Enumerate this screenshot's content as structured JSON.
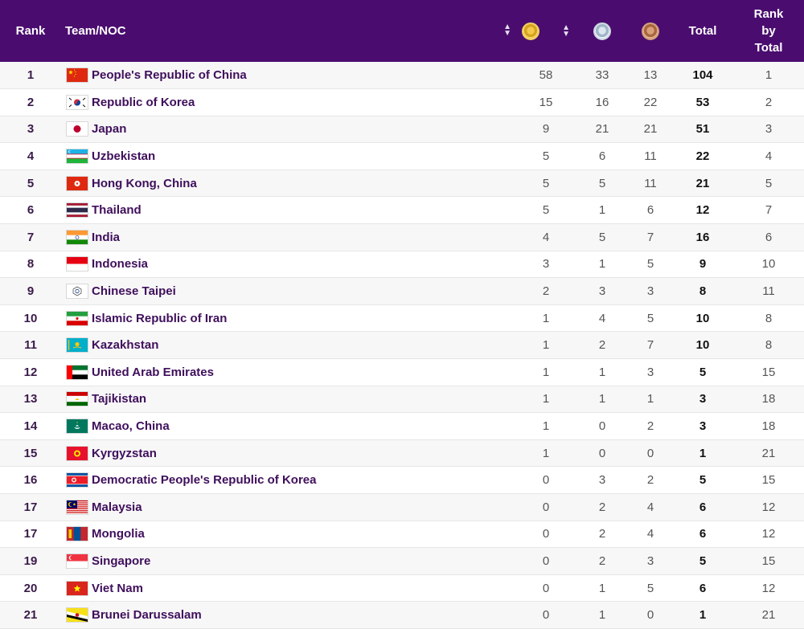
{
  "header": {
    "rank": "Rank",
    "team": "Team/NOC",
    "gold_icon": "gold-medal-icon",
    "silver_icon": "silver-medal-icon",
    "bronze_icon": "bronze-medal-icon",
    "total": "Total",
    "rank_by_total_1": "Rank",
    "rank_by_total_2": "by",
    "rank_by_total_3": "Total",
    "sort_icon": "sort-icon"
  },
  "rows": [
    {
      "rank": "1",
      "flag": "china",
      "team": "People's Republic of China",
      "gold": "58",
      "silver": "33",
      "bronze": "13",
      "total": "104",
      "rank_by_total": "1"
    },
    {
      "rank": "2",
      "flag": "korea",
      "team": "Republic of Korea",
      "gold": "15",
      "silver": "16",
      "bronze": "22",
      "total": "53",
      "rank_by_total": "2"
    },
    {
      "rank": "3",
      "flag": "japan",
      "team": "Japan",
      "gold": "9",
      "silver": "21",
      "bronze": "21",
      "total": "51",
      "rank_by_total": "3"
    },
    {
      "rank": "4",
      "flag": "uzbekistan",
      "team": "Uzbekistan",
      "gold": "5",
      "silver": "6",
      "bronze": "11",
      "total": "22",
      "rank_by_total": "4"
    },
    {
      "rank": "5",
      "flag": "hong-kong",
      "team": "Hong Kong, China",
      "gold": "5",
      "silver": "5",
      "bronze": "11",
      "total": "21",
      "rank_by_total": "5"
    },
    {
      "rank": "6",
      "flag": "thailand",
      "team": "Thailand",
      "gold": "5",
      "silver": "1",
      "bronze": "6",
      "total": "12",
      "rank_by_total": "7"
    },
    {
      "rank": "7",
      "flag": "india",
      "team": "India",
      "gold": "4",
      "silver": "5",
      "bronze": "7",
      "total": "16",
      "rank_by_total": "6"
    },
    {
      "rank": "8",
      "flag": "indonesia",
      "team": "Indonesia",
      "gold": "3",
      "silver": "1",
      "bronze": "5",
      "total": "9",
      "rank_by_total": "10"
    },
    {
      "rank": "9",
      "flag": "chinese-taipei",
      "team": "Chinese Taipei",
      "gold": "2",
      "silver": "3",
      "bronze": "3",
      "total": "8",
      "rank_by_total": "11"
    },
    {
      "rank": "10",
      "flag": "iran",
      "team": "Islamic Republic of Iran",
      "gold": "1",
      "silver": "4",
      "bronze": "5",
      "total": "10",
      "rank_by_total": "8"
    },
    {
      "rank": "11",
      "flag": "kazakhstan",
      "team": "Kazakhstan",
      "gold": "1",
      "silver": "2",
      "bronze": "7",
      "total": "10",
      "rank_by_total": "8"
    },
    {
      "rank": "12",
      "flag": "uae",
      "team": "United Arab Emirates",
      "gold": "1",
      "silver": "1",
      "bronze": "3",
      "total": "5",
      "rank_by_total": "15"
    },
    {
      "rank": "13",
      "flag": "tajikistan",
      "team": "Tajikistan",
      "gold": "1",
      "silver": "1",
      "bronze": "1",
      "total": "3",
      "rank_by_total": "18"
    },
    {
      "rank": "14",
      "flag": "macao",
      "team": "Macao, China",
      "gold": "1",
      "silver": "0",
      "bronze": "2",
      "total": "3",
      "rank_by_total": "18"
    },
    {
      "rank": "15",
      "flag": "kyrgyzstan",
      "team": "Kyrgyzstan",
      "gold": "1",
      "silver": "0",
      "bronze": "0",
      "total": "1",
      "rank_by_total": "21"
    },
    {
      "rank": "16",
      "flag": "dpr-korea",
      "team": "Democratic People's Republic of Korea",
      "gold": "0",
      "silver": "3",
      "bronze": "2",
      "total": "5",
      "rank_by_total": "15"
    },
    {
      "rank": "17",
      "flag": "malaysia",
      "team": "Malaysia",
      "gold": "0",
      "silver": "2",
      "bronze": "4",
      "total": "6",
      "rank_by_total": "12"
    },
    {
      "rank": "17",
      "flag": "mongolia",
      "team": "Mongolia",
      "gold": "0",
      "silver": "2",
      "bronze": "4",
      "total": "6",
      "rank_by_total": "12"
    },
    {
      "rank": "19",
      "flag": "singapore",
      "team": "Singapore",
      "gold": "0",
      "silver": "2",
      "bronze": "3",
      "total": "5",
      "rank_by_total": "15"
    },
    {
      "rank": "20",
      "flag": "vietnam",
      "team": "Viet Nam",
      "gold": "0",
      "silver": "1",
      "bronze": "5",
      "total": "6",
      "rank_by_total": "12"
    },
    {
      "rank": "21",
      "flag": "brunei",
      "team": "Brunei Darussalam",
      "gold": "0",
      "silver": "1",
      "bronze": "0",
      "total": "1",
      "rank_by_total": "21"
    }
  ],
  "colors": {
    "header_bg": "#4a0d6f",
    "team_name": "#3f0f5c"
  }
}
